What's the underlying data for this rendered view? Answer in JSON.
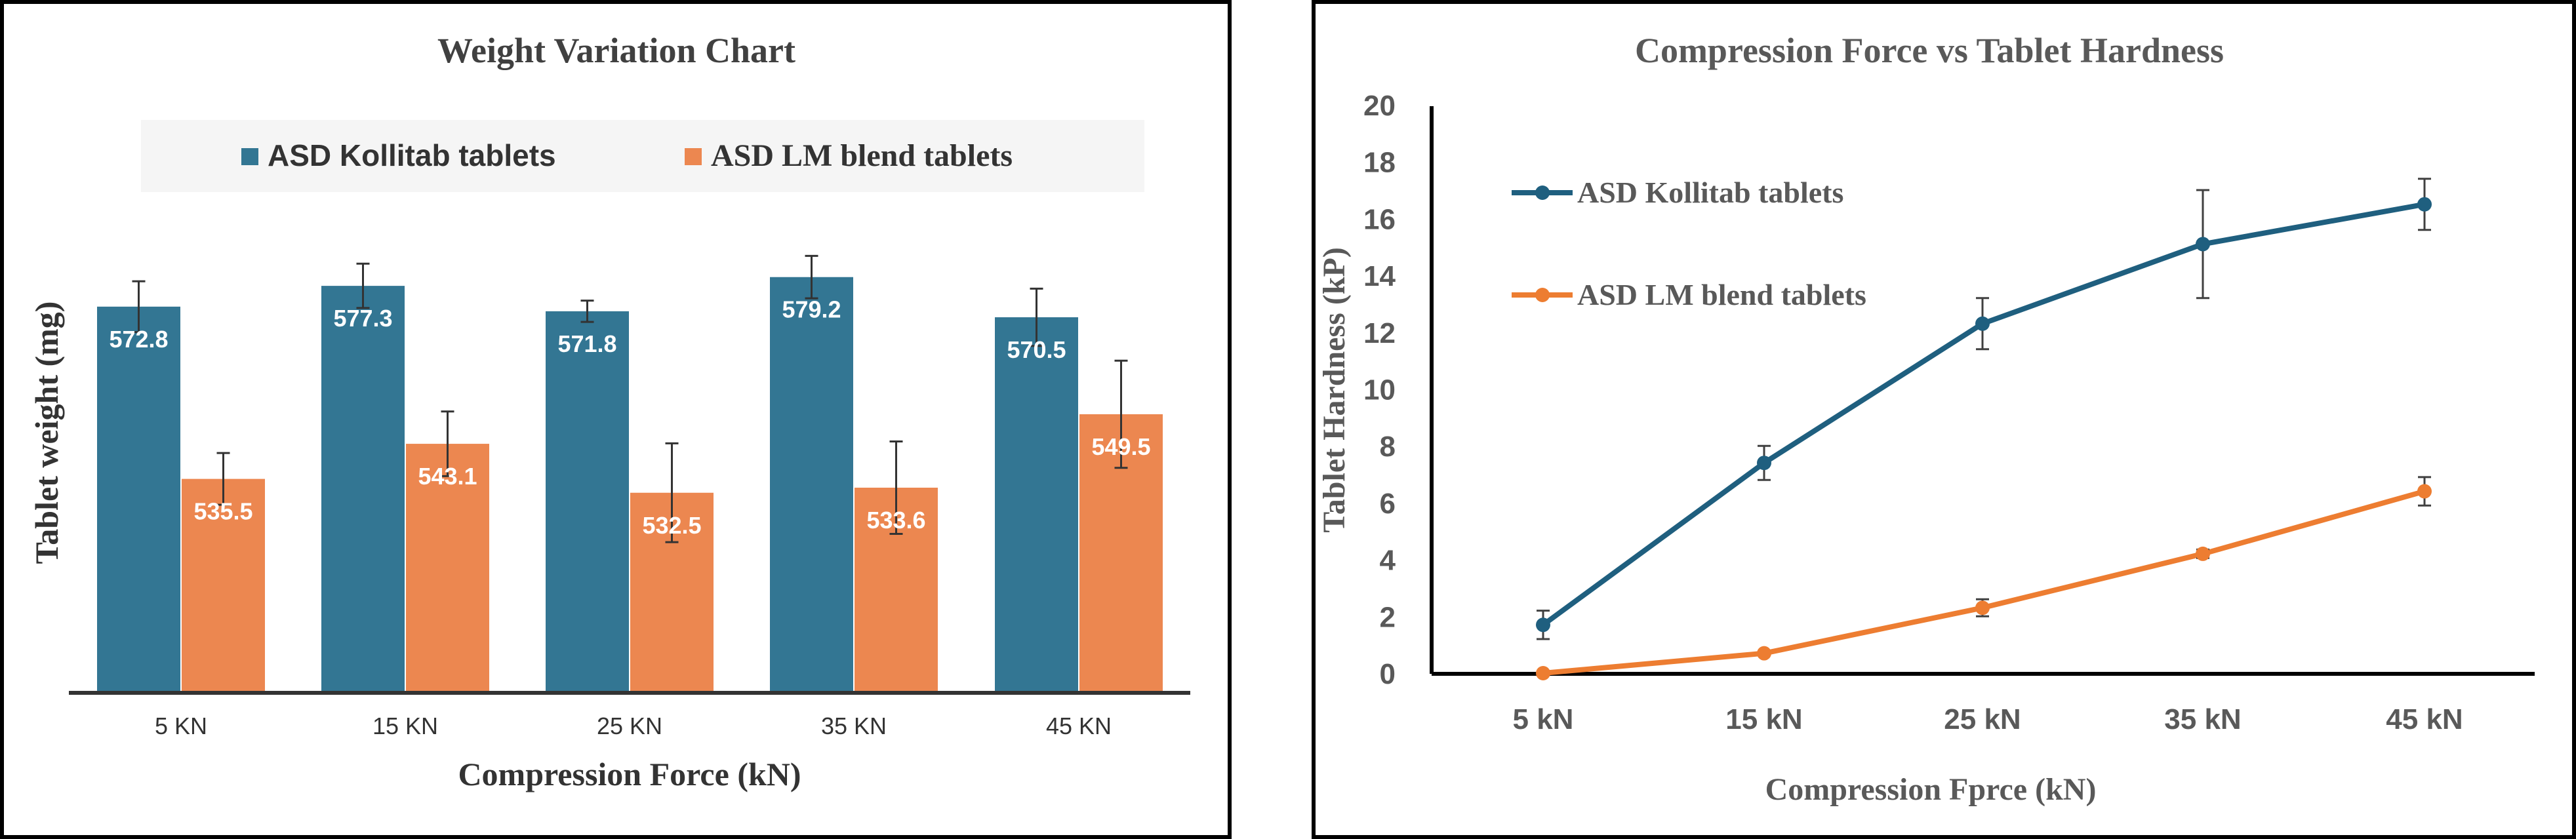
{
  "chart_data": [
    {
      "type": "bar",
      "title": "Weight Variation Chart",
      "xlabel": "Compression Force (kN)",
      "ylabel": "Tablet weight (mg)",
      "categories": [
        "5 KN",
        "15 KN",
        "25 KN",
        "35 KN",
        "45 KN"
      ],
      "series": [
        {
          "name": "ASD Kollitab tablets",
          "color": "#337693",
          "values": [
            572.8,
            577.3,
            571.8,
            579.2,
            570.5
          ],
          "errors": [
            5.5,
            4.8,
            2.3,
            4.6,
            6.2
          ]
        },
        {
          "name": "ASD LM blend tablets",
          "color": "#EC8750",
          "values": [
            535.5,
            543.1,
            532.5,
            533.6,
            549.5
          ],
          "errors": [
            5.6,
            7.0,
            10.7,
            10.0,
            11.6
          ]
        }
      ],
      "ylim": [
        489.6,
        599.6
      ],
      "grid": false,
      "legend": "top",
      "data_labels": true
    },
    {
      "type": "line",
      "title": "Compression Force vs Tablet Hardness",
      "xlabel": "Compression Fprce (kN)",
      "ylabel": "Tablet Hardness (kP)",
      "categories": [
        "5 kN",
        "15 kN",
        "25 kN",
        "35 kN",
        "45 kN"
      ],
      "series": [
        {
          "name": "ASD Kollitab tablets",
          "color": "#1F5F7F",
          "values": [
            1.7,
            7.4,
            12.3,
            15.1,
            16.5
          ],
          "errors": [
            0.5,
            0.6,
            0.9,
            1.9,
            0.9
          ]
        },
        {
          "name": "ASD LM blend tablets",
          "color": "#ED7D31",
          "values": [
            0,
            0.7,
            2.3,
            4.2,
            6.4
          ],
          "errors": [
            0,
            0,
            0.3,
            0.15,
            0.5
          ]
        }
      ],
      "yticks": [
        "0",
        "2",
        "4",
        "6",
        "8",
        "10",
        "12",
        "14",
        "16",
        "18",
        "20"
      ],
      "ylim": [
        0,
        20
      ],
      "grid": false,
      "legend": "top-left"
    }
  ]
}
